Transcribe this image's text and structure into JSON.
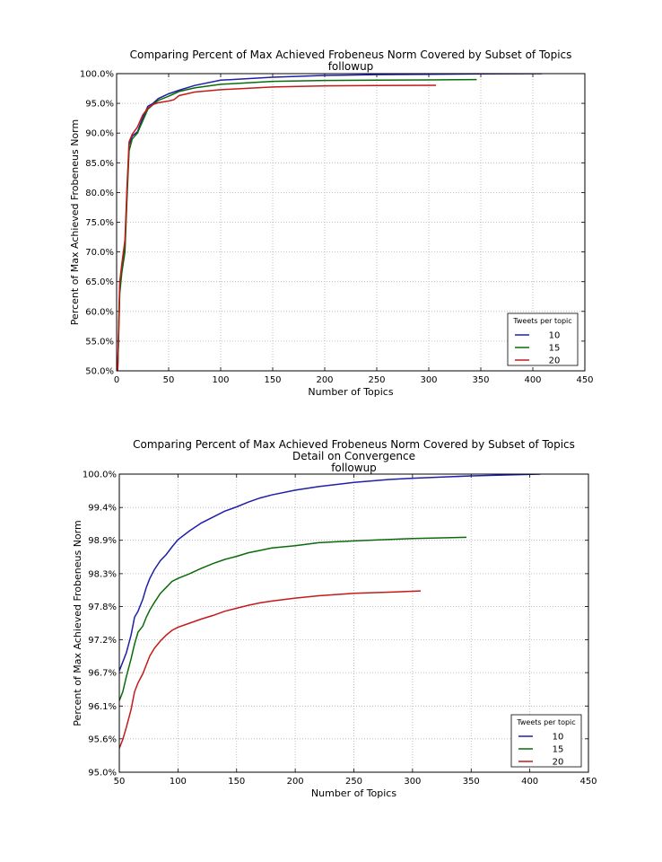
{
  "chart_data": [
    {
      "type": "line",
      "title": "Comparing Percent of Max Achieved Frobeneus Norm Covered by Subset of Topics",
      "subtitle_lines": [
        "followup"
      ],
      "xlabel": "Number of Topics",
      "ylabel": "Percent of Max Achieved Frobeneus Norm",
      "xlim": [
        0,
        450
      ],
      "ylim": [
        50.0,
        100.0
      ],
      "xticks": [
        0,
        50,
        100,
        150,
        200,
        250,
        300,
        350,
        400,
        450
      ],
      "yticks": [
        50.0,
        55.0,
        60.0,
        65.0,
        70.0,
        75.0,
        80.0,
        85.0,
        90.0,
        95.0,
        100.0
      ],
      "ytick_labels": [
        "50.0%",
        "55.0%",
        "60.0%",
        "65.0%",
        "70.0%",
        "75.0%",
        "80.0%",
        "85.0%",
        "90.0%",
        "95.0%",
        "100.0%"
      ],
      "grid": true,
      "legend": {
        "title": "Tweets per topic",
        "placement": "bottom-right"
      },
      "series": [
        {
          "name": "10",
          "color": "#1f1fa8",
          "x": [
            1,
            2,
            3,
            5,
            8,
            10,
            12,
            15,
            20,
            25,
            30,
            35,
            40,
            50,
            60,
            75,
            100,
            150,
            200,
            250,
            300,
            350,
            409
          ],
          "y": [
            50.0,
            57.0,
            64.0,
            67.0,
            71.0,
            80.0,
            88.0,
            89.5,
            90.2,
            92.5,
            94.5,
            95.0,
            95.8,
            96.6,
            97.2,
            98.0,
            98.9,
            99.4,
            99.7,
            99.83,
            99.9,
            99.95,
            100.0
          ]
        },
        {
          "name": "15",
          "color": "#0b6b0b",
          "x": [
            1,
            2,
            3,
            5,
            8,
            10,
            12,
            15,
            20,
            25,
            30,
            35,
            40,
            50,
            60,
            75,
            100,
            150,
            200,
            250,
            300,
            346
          ],
          "y": [
            50.0,
            56.0,
            63.0,
            66.5,
            70.0,
            79.0,
            87.0,
            89.0,
            90.0,
            92.0,
            94.0,
            94.8,
            95.5,
            96.2,
            97.0,
            97.6,
            98.2,
            98.7,
            98.85,
            98.9,
            98.95,
            99.0
          ]
        },
        {
          "name": "20",
          "color": "#c41a1a",
          "x": [
            1,
            2,
            3,
            5,
            8,
            10,
            12,
            15,
            20,
            25,
            30,
            35,
            40,
            50,
            55,
            60,
            75,
            100,
            150,
            200,
            250,
            307
          ],
          "y": [
            50.0,
            58.0,
            65.0,
            68.0,
            72.0,
            81.0,
            88.5,
            89.8,
            91.0,
            93.0,
            94.2,
            94.8,
            95.1,
            95.4,
            95.6,
            96.3,
            96.9,
            97.3,
            97.75,
            97.95,
            98.0,
            98.03
          ]
        }
      ]
    },
    {
      "type": "line",
      "title": "Comparing Percent of Max Achieved Frobeneus Norm Covered by Subset of Topics",
      "subtitle_lines": [
        "Detail on Convergence",
        "followup"
      ],
      "xlabel": "Number of Topics",
      "ylabel": "Percent of Max Achieved Frobeneus Norm",
      "xlim": [
        50,
        450
      ],
      "ylim": [
        95.0,
        100.0
      ],
      "xticks": [
        50,
        100,
        150,
        200,
        250,
        300,
        350,
        400,
        450
      ],
      "yticks": [
        95.0,
        95.56,
        96.11,
        96.67,
        97.22,
        97.78,
        98.33,
        98.89,
        99.44,
        100.0
      ],
      "ytick_labels": [
        "95.0%",
        "95.6%",
        "96.1%",
        "96.7%",
        "97.2%",
        "97.8%",
        "98.3%",
        "98.9%",
        "99.4%",
        "100.0%"
      ],
      "grid": true,
      "legend": {
        "title": "Tweets per topic",
        "placement": "bottom-right"
      },
      "series": [
        {
          "name": "10",
          "color": "#1f1fa8",
          "x": [
            50,
            53,
            56,
            60,
            63,
            66,
            70,
            73,
            76,
            80,
            85,
            90,
            95,
            100,
            110,
            120,
            130,
            140,
            150,
            160,
            170,
            180,
            200,
            220,
            250,
            280,
            300,
            350,
            409
          ],
          "y": [
            96.7,
            96.85,
            97.0,
            97.3,
            97.6,
            97.7,
            97.9,
            98.1,
            98.25,
            98.4,
            98.55,
            98.65,
            98.78,
            98.9,
            99.05,
            99.18,
            99.28,
            99.38,
            99.45,
            99.53,
            99.6,
            99.65,
            99.73,
            99.79,
            99.86,
            99.91,
            99.93,
            99.97,
            100.0
          ]
        },
        {
          "name": "15",
          "color": "#0b6b0b",
          "x": [
            50,
            53,
            56,
            60,
            63,
            66,
            70,
            73,
            76,
            80,
            85,
            90,
            95,
            100,
            110,
            120,
            130,
            140,
            150,
            160,
            170,
            180,
            200,
            220,
            250,
            300,
            346
          ],
          "y": [
            96.2,
            96.35,
            96.6,
            96.9,
            97.15,
            97.35,
            97.45,
            97.6,
            97.72,
            97.85,
            98.0,
            98.1,
            98.2,
            98.25,
            98.33,
            98.42,
            98.5,
            98.57,
            98.62,
            98.68,
            98.72,
            98.76,
            98.8,
            98.85,
            98.88,
            98.92,
            98.94
          ]
        },
        {
          "name": "20",
          "color": "#c41a1a",
          "x": [
            50,
            53,
            56,
            60,
            63,
            66,
            70,
            73,
            76,
            80,
            85,
            90,
            95,
            100,
            110,
            120,
            130,
            140,
            150,
            160,
            170,
            180,
            200,
            220,
            250,
            280,
            307
          ],
          "y": [
            95.4,
            95.55,
            95.75,
            96.05,
            96.35,
            96.5,
            96.65,
            96.8,
            96.95,
            97.08,
            97.2,
            97.3,
            97.38,
            97.43,
            97.5,
            97.57,
            97.63,
            97.7,
            97.75,
            97.8,
            97.84,
            97.87,
            97.92,
            97.96,
            98.0,
            98.02,
            98.04
          ]
        }
      ]
    }
  ]
}
